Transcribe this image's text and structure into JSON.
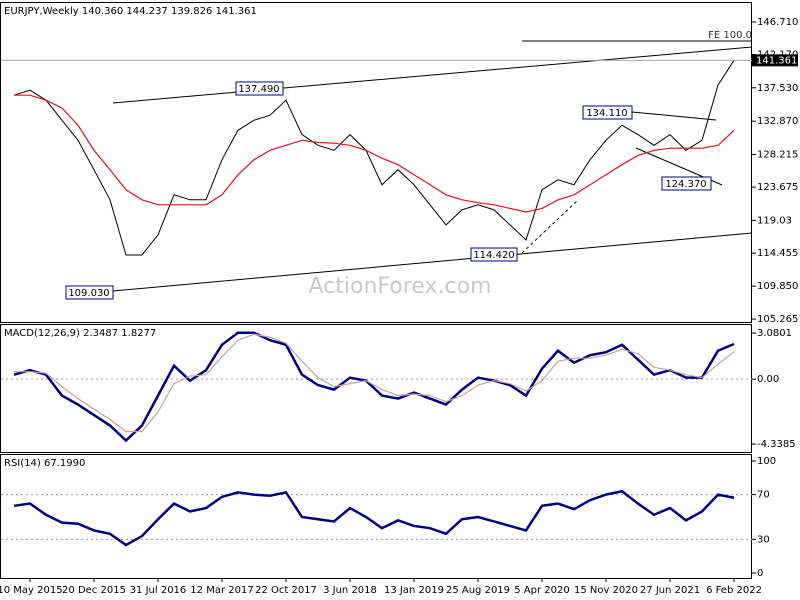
{
  "chart_data": [
    {
      "type": "line",
      "title": "EURJPY,Weekly  140.360 144.237 139.826 141.361",
      "watermark": "ActionForex.com",
      "categories": [
        null,
        "10 May 2015",
        null,
        null,
        null,
        "20 Dec 2015",
        null,
        null,
        null,
        "31 Jul 2016",
        null,
        null,
        null,
        "12 Mar 2017",
        null,
        null,
        null,
        "22 Oct 2017",
        null,
        null,
        null,
        "3 Jun 2018",
        null,
        null,
        null,
        "13 Jan 2019",
        null,
        null,
        null,
        "25 Aug 2019",
        null,
        null,
        null,
        "5 Apr 2020",
        null,
        null,
        null,
        "15 Nov 2020",
        null,
        null,
        null,
        "27 Jun 2021",
        null,
        null,
        null,
        "6 Feb 2022"
      ],
      "series": [
        {
          "name": "EURJPY",
          "color": "#000000",
          "values": [
            136.5,
            137.2,
            135.8,
            133.0,
            130.2,
            126.1,
            121.9,
            114.2,
            114.2,
            117.0,
            122.6,
            121.9,
            121.9,
            127.5,
            131.6,
            133.0,
            133.7,
            135.8,
            131.0,
            129.5,
            128.8,
            131.0,
            128.8,
            124.0,
            126.1,
            124.0,
            121.2,
            118.4,
            120.5,
            121.2,
            120.5,
            118.4,
            116.3,
            123.3,
            124.7,
            124.0,
            127.5,
            130.2,
            132.3,
            131.0,
            129.5,
            131.0,
            128.8,
            130.2,
            137.9,
            141.361
          ]
        },
        {
          "name": "MA",
          "color": "#e0141e",
          "values": [
            136.5,
            136.5,
            135.8,
            134.7,
            132.3,
            128.8,
            126.1,
            123.3,
            121.9,
            121.2,
            121.2,
            121.2,
            121.2,
            122.6,
            125.4,
            127.5,
            128.8,
            129.5,
            130.2,
            129.9,
            129.8,
            129.5,
            128.8,
            127.7,
            126.8,
            125.4,
            124.0,
            122.6,
            121.9,
            121.5,
            121.2,
            120.7,
            120.2,
            120.7,
            121.9,
            122.6,
            124.0,
            125.4,
            126.8,
            128.1,
            128.8,
            129.1,
            129.1,
            129.1,
            129.5,
            131.6
          ]
        }
      ],
      "ylim": [
        104.85,
        149.36
      ],
      "yticks": [
        {
          "value": 146.71,
          "label": "146.710"
        },
        {
          "value": 142.17,
          "label": "142.170"
        },
        {
          "value": 137.53,
          "label": "137.530"
        },
        {
          "value": 132.87,
          "label": "132.870"
        },
        128.215,
        123.675,
        119.03,
        114.455,
        {
          "value": 109.85,
          "label": "109.850"
        },
        105.265
      ],
      "last_value": 141.361,
      "annotations": [
        "137.490",
        "134.110",
        "124.370",
        "114.420",
        "109.030",
        "FE 100.0"
      ]
    },
    {
      "type": "line",
      "title": "MACD(12,26,9) 2.3487 1.8277",
      "series": [
        {
          "name": "MACD",
          "color": "#00007f",
          "values": [
            0.3,
            0.6,
            0.3,
            -1.1,
            -1.7,
            -2.4,
            -3.1,
            -4.1,
            -3.1,
            -1.1,
            0.9,
            -0.1,
            0.6,
            2.3,
            3.1,
            3.1,
            2.6,
            2.3,
            0.3,
            -0.4,
            -0.7,
            0.1,
            -0.1,
            -1.1,
            -1.3,
            -0.9,
            -1.3,
            -1.7,
            -0.7,
            0.1,
            -0.1,
            -0.4,
            -1.1,
            0.7,
            1.9,
            1.1,
            1.6,
            1.8,
            2.3,
            1.3,
            0.3,
            0.6,
            0.1,
            0.1,
            1.9,
            2.3487
          ]
        },
        {
          "name": "Signal",
          "color": "#c8a0a0",
          "values": [
            0.5,
            0.5,
            0.4,
            -0.5,
            -1.3,
            -2.0,
            -2.7,
            -3.5,
            -3.5,
            -2.2,
            -0.3,
            0.2,
            0.3,
            1.5,
            2.6,
            3.0,
            2.8,
            2.4,
            1.2,
            0.1,
            -0.5,
            -0.3,
            -0.1,
            -0.7,
            -1.1,
            -1.0,
            -1.1,
            -1.5,
            -1.1,
            -0.4,
            -0.1,
            -0.3,
            -0.8,
            -0.1,
            1.2,
            1.4,
            1.4,
            1.6,
            2.0,
            1.7,
            0.8,
            0.6,
            0.3,
            0.1,
            1.0,
            1.8277
          ]
        }
      ],
      "ylim": [
        -4.87,
        3.62
      ],
      "yticks": [
        3.0801,
        {
          "value": 0,
          "label": "0.00"
        },
        -4.3385
      ]
    },
    {
      "type": "line",
      "title": "RSI(14) 67.1990",
      "series": [
        {
          "name": "RSI",
          "color": "#00007f",
          "values": [
            60,
            62,
            52,
            45,
            44,
            38,
            35,
            25,
            33,
            48,
            62,
            55,
            58,
            68,
            72,
            70,
            69,
            72,
            50,
            48,
            46,
            58,
            50,
            40,
            47,
            42,
            40,
            35,
            48,
            50,
            46,
            42,
            38,
            60,
            62,
            57,
            65,
            70,
            73,
            62,
            52,
            58,
            47,
            55,
            70,
            67.199
          ]
        }
      ],
      "ylim": [
        -4.5,
        105.4
      ],
      "yticks": [
        100,
        70,
        30,
        0
      ]
    }
  ]
}
